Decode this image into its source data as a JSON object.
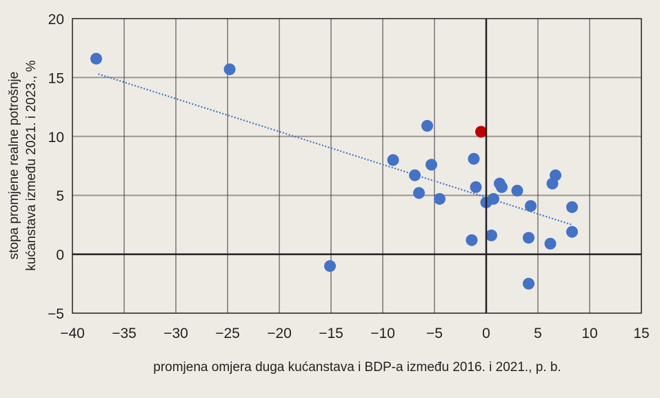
{
  "chart_data": {
    "type": "scatter",
    "title": "",
    "xlabel": "promjena omjera duga kućanstava i BDP-a između 2016. i 2021., p. b.",
    "ylabel_lines": [
      "stopa promjene realne potrošnje",
      "kućanstava između 2021. i 2023., %"
    ],
    "xlim": [
      -40,
      15
    ],
    "ylim": [
      -5,
      20
    ],
    "x_ticks": [
      -40,
      -35,
      -30,
      -25,
      -20,
      -15,
      -10,
      -5,
      0,
      5,
      10,
      15
    ],
    "x_tick_labels": [
      "−40",
      "−35",
      "−30",
      "−25",
      "−20",
      "−15",
      "−10",
      "−5",
      "0",
      "5",
      "10",
      "15"
    ],
    "y_ticks": [
      -5,
      0,
      5,
      10,
      15,
      20
    ],
    "y_tick_labels": [
      "−5",
      "0",
      "5",
      "10",
      "15",
      "20"
    ],
    "grid": true,
    "colors": {
      "points": "#4472c4",
      "highlight": "#c00000",
      "trend": "#4472c4",
      "axis": "#231f20",
      "grid_v": "#3a3a3a",
      "grid_h": "#9a9892",
      "background": "#eeebe5"
    },
    "series": [
      {
        "name": "countries",
        "points": [
          {
            "x": -37.7,
            "y": 16.6
          },
          {
            "x": -24.8,
            "y": 15.7
          },
          {
            "x": -15.1,
            "y": -1.0
          },
          {
            "x": -9.0,
            "y": 8.0
          },
          {
            "x": -5.7,
            "y": 10.9
          },
          {
            "x": -6.9,
            "y": 6.7
          },
          {
            "x": -5.3,
            "y": 7.6
          },
          {
            "x": -6.5,
            "y": 5.2
          },
          {
            "x": -4.5,
            "y": 4.7
          },
          {
            "x": -1.2,
            "y": 8.1
          },
          {
            "x": -1.0,
            "y": 5.7
          },
          {
            "x": -1.4,
            "y": 1.2
          },
          {
            "x": 0.0,
            "y": 4.4
          },
          {
            "x": 0.7,
            "y": 4.7
          },
          {
            "x": 0.5,
            "y": 1.6
          },
          {
            "x": 1.3,
            "y": 6.0
          },
          {
            "x": 1.5,
            "y": 5.7
          },
          {
            "x": 3.0,
            "y": 5.4
          },
          {
            "x": 4.3,
            "y": 4.1
          },
          {
            "x": 4.1,
            "y": 1.4
          },
          {
            "x": 4.1,
            "y": -2.5
          },
          {
            "x": 6.7,
            "y": 6.7
          },
          {
            "x": 6.4,
            "y": 6.0
          },
          {
            "x": 6.2,
            "y": 0.9
          },
          {
            "x": 8.3,
            "y": 4.0
          },
          {
            "x": 8.3,
            "y": 1.9
          }
        ]
      },
      {
        "name": "highlighted",
        "points": [
          {
            "x": -0.5,
            "y": 10.4
          }
        ]
      }
    ],
    "trendline": {
      "style": "dotted",
      "from": {
        "x": -37.5,
        "y": 15.3
      },
      "to": {
        "x": 8.3,
        "y": 2.5
      }
    }
  }
}
